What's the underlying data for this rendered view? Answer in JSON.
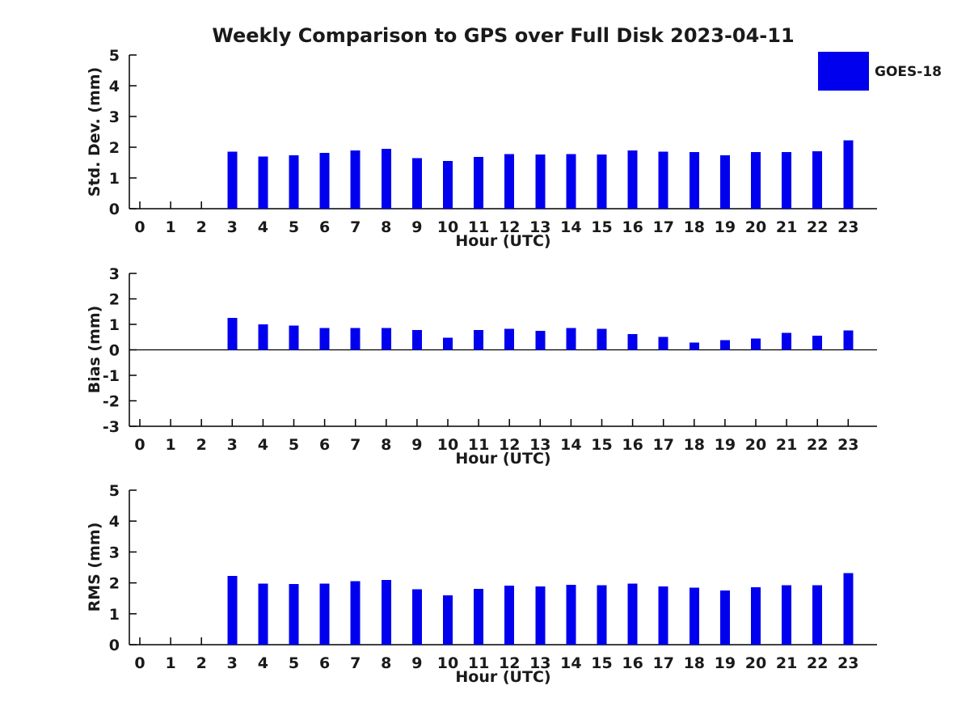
{
  "title": "Weekly Comparison to GPS over Full Disk 2023-04-11",
  "legend": {
    "label": "GOES-18",
    "color": "#0000EE"
  },
  "colors": {
    "bar": "#0000EE",
    "axis": "#000000",
    "text": "#1a1a1a"
  },
  "chart_data": [
    {
      "type": "bar",
      "ylabel": "Std. Dev. (mm)",
      "xlabel": "Hour (UTC)",
      "ylim": [
        0,
        5
      ],
      "yticks": [
        0,
        1,
        2,
        3,
        4,
        5
      ],
      "grid": false,
      "legend_position": "upper-right-outside",
      "categories": [
        0,
        1,
        2,
        3,
        4,
        5,
        6,
        7,
        8,
        9,
        10,
        11,
        12,
        13,
        14,
        15,
        16,
        17,
        18,
        19,
        20,
        21,
        22,
        23
      ],
      "values": [
        null,
        null,
        null,
        1.85,
        1.7,
        1.74,
        1.82,
        1.9,
        1.95,
        1.65,
        1.55,
        1.68,
        1.77,
        1.76,
        1.77,
        1.76,
        1.9,
        1.85,
        1.84,
        1.74,
        1.84,
        1.84,
        1.87,
        2.23
      ]
    },
    {
      "type": "bar",
      "ylabel": "Bias (mm)",
      "xlabel": "Hour (UTC)",
      "ylim": [
        -3,
        3
      ],
      "yticks": [
        -3,
        -2,
        -1,
        0,
        1,
        2,
        3
      ],
      "grid": false,
      "categories": [
        0,
        1,
        2,
        3,
        4,
        5,
        6,
        7,
        8,
        9,
        10,
        11,
        12,
        13,
        14,
        15,
        16,
        17,
        18,
        19,
        20,
        21,
        22,
        23
      ],
      "values": [
        null,
        null,
        null,
        1.25,
        1.0,
        0.95,
        0.85,
        0.85,
        0.85,
        0.78,
        0.48,
        0.77,
        0.83,
        0.74,
        0.86,
        0.83,
        0.62,
        0.51,
        0.29,
        0.38,
        0.44,
        0.66,
        0.55,
        0.76
      ]
    },
    {
      "type": "bar",
      "ylabel": "RMS (mm)",
      "xlabel": "Hour (UTC)",
      "ylim": [
        0,
        5
      ],
      "yticks": [
        0,
        1,
        2,
        3,
        4,
        5
      ],
      "grid": false,
      "categories": [
        0,
        1,
        2,
        3,
        4,
        5,
        6,
        7,
        8,
        9,
        10,
        11,
        12,
        13,
        14,
        15,
        16,
        17,
        18,
        19,
        20,
        21,
        22,
        23
      ],
      "values": [
        null,
        null,
        null,
        2.22,
        1.97,
        1.96,
        1.97,
        2.05,
        2.1,
        1.79,
        1.6,
        1.81,
        1.91,
        1.88,
        1.94,
        1.92,
        1.97,
        1.89,
        1.84,
        1.76,
        1.86,
        1.92,
        1.92,
        2.32
      ]
    }
  ]
}
